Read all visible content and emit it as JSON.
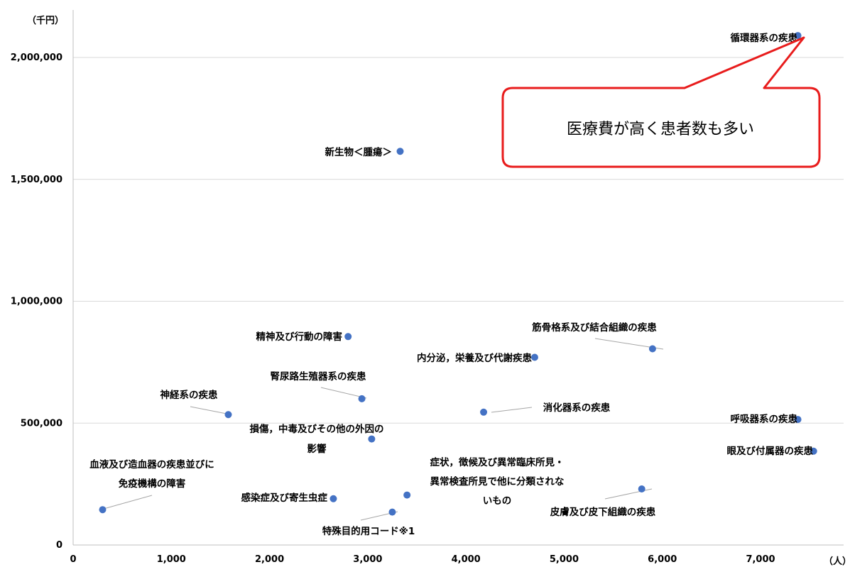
{
  "chart_data": {
    "type": "scatter",
    "title": "",
    "xlabel": "",
    "ylabel": "",
    "y_unit": "（千円）",
    "x_unit": "（人）",
    "xlim": [
      0,
      7600
    ],
    "ylim": [
      0,
      2150000
    ],
    "x_ticks": [
      0,
      1000,
      2000,
      3000,
      4000,
      5000,
      6000,
      7000
    ],
    "x_tick_labels": [
      "0",
      "1,000",
      "2,000",
      "3,000",
      "4,000",
      "5,000",
      "6,000",
      "7,000"
    ],
    "y_ticks": [
      0,
      500000,
      1000000,
      1500000,
      2000000
    ],
    "y_tick_labels": [
      "0",
      "500,000",
      "1,000,000",
      "1,500,000",
      "2,000,000"
    ],
    "grid": "horizontal",
    "point_color": "#4472C4",
    "points": [
      {
        "x": 7380,
        "y": 2090000,
        "label_lines": [
          "循環器系の疾患"
        ]
      },
      {
        "x": 3330,
        "y": 1615000,
        "label_lines": [
          "新生物＜腫瘍＞"
        ]
      },
      {
        "x": 2800,
        "y": 855000,
        "label_lines": [
          "精神及び行動の障害"
        ]
      },
      {
        "x": 5900,
        "y": 805000,
        "label_lines": [
          "筋骨格系及び結合組織の疾患"
        ]
      },
      {
        "x": 4700,
        "y": 770000,
        "label_lines": [
          "内分泌，栄養及び代謝疾患"
        ]
      },
      {
        "x": 2940,
        "y": 600000,
        "label_lines": [
          "腎尿路生殖器系の疾患"
        ]
      },
      {
        "x": 1580,
        "y": 535000,
        "label_lines": [
          "神経系の疾患"
        ]
      },
      {
        "x": 4180,
        "y": 545000,
        "label_lines": [
          "消化器系の疾患"
        ]
      },
      {
        "x": 7380,
        "y": 515000,
        "label_lines": [
          "呼吸器系の疾患"
        ]
      },
      {
        "x": 3040,
        "y": 435000,
        "label_lines": [
          "損傷，中毒及びその他の外因の",
          "影響"
        ]
      },
      {
        "x": 7540,
        "y": 385000,
        "label_lines": [
          "眼及び付属器の疾患"
        ]
      },
      {
        "x": 3400,
        "y": 205000,
        "label_lines": [
          "症状，徴候及び異常臨床所見・",
          "異常検査所見で他に分類されな",
          "いもの"
        ]
      },
      {
        "x": 2650,
        "y": 190000,
        "label_lines": [
          "感染症及び寄生虫症"
        ]
      },
      {
        "x": 5790,
        "y": 230000,
        "label_lines": [
          "皮膚及び皮下組織の疾患"
        ]
      },
      {
        "x": 300,
        "y": 145000,
        "label_lines": [
          "血液及び造血器の疾患並びに",
          "免疫機構の障害"
        ]
      },
      {
        "x": 3250,
        "y": 135000,
        "label_lines": [
          "特殊目的用コード※1"
        ]
      }
    ],
    "callout": {
      "text": "医療費が高く患者数も多い",
      "color": "#E81C1C"
    }
  }
}
